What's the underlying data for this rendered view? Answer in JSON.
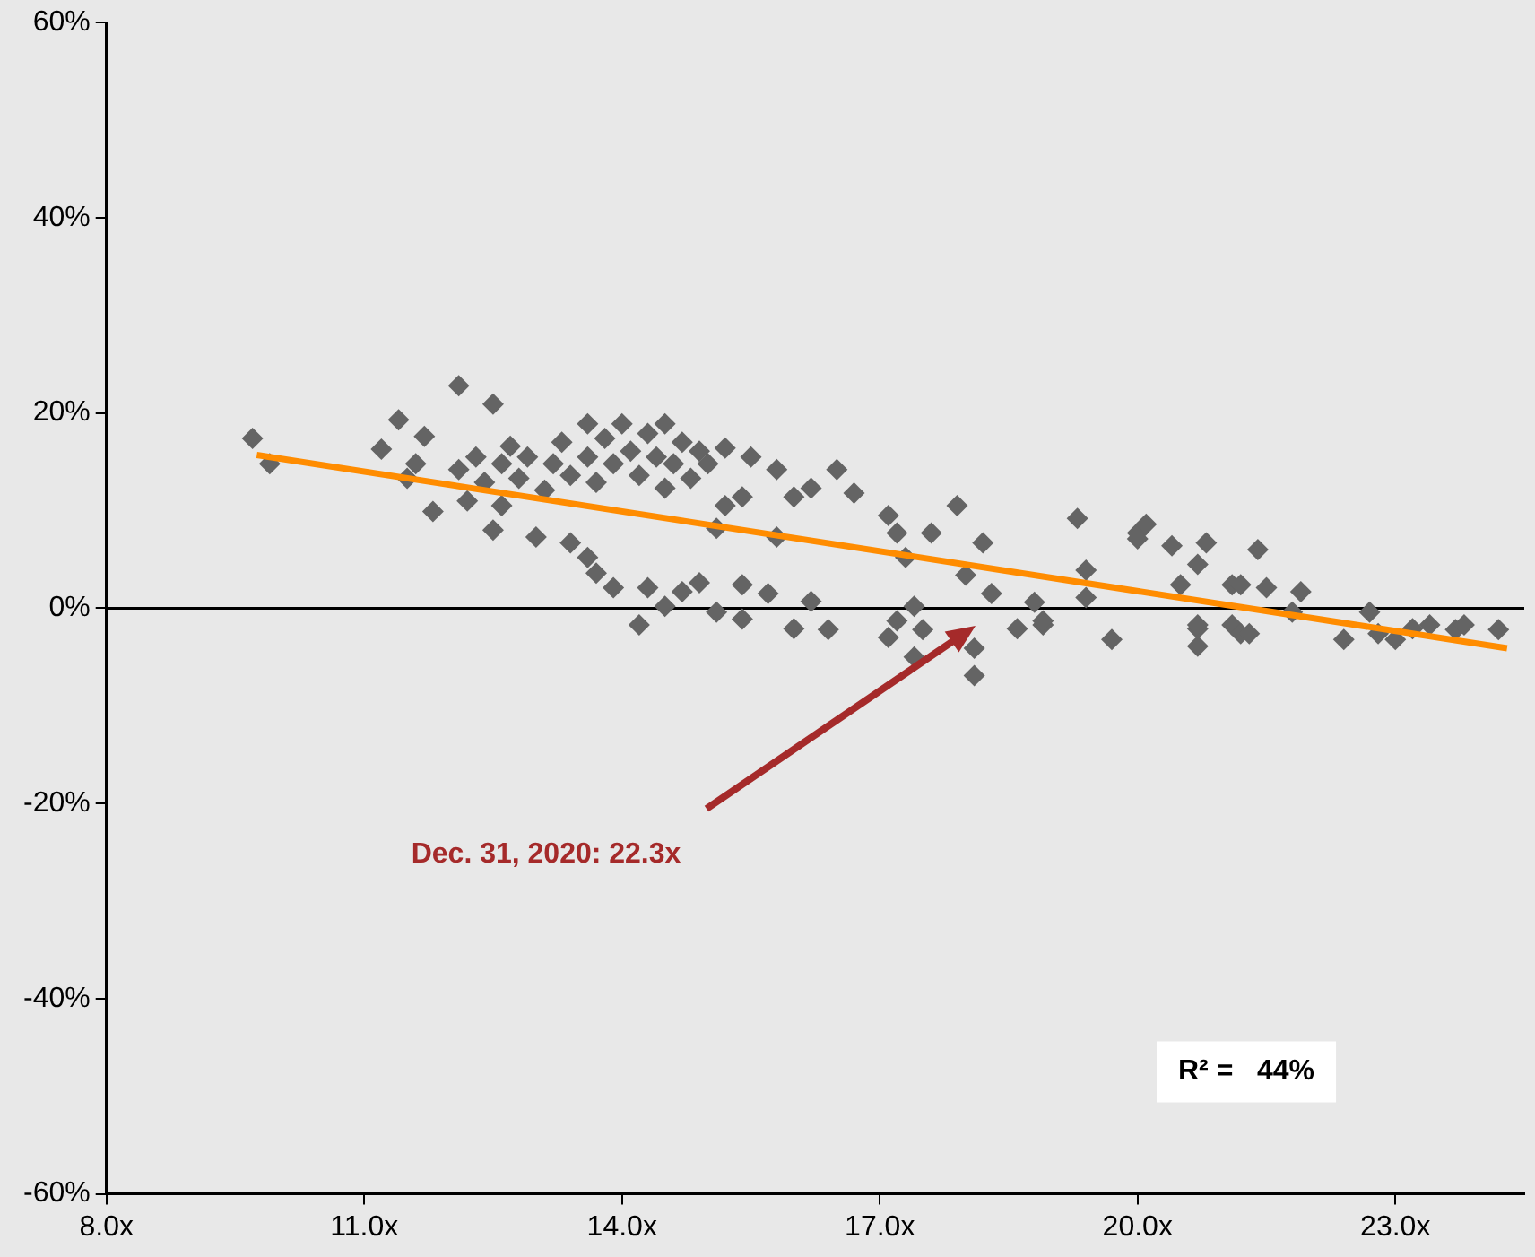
{
  "chart_data": {
    "type": "scatter",
    "xlim": [
      8,
      24.5
    ],
    "ylim": [
      -60,
      60
    ],
    "xticks": [
      {
        "value": 8,
        "label": "8.0x"
      },
      {
        "value": 11,
        "label": "11.0x"
      },
      {
        "value": 14,
        "label": "14.0x"
      },
      {
        "value": 17,
        "label": "17.0x"
      },
      {
        "value": 20,
        "label": "20.0x"
      },
      {
        "value": 23,
        "label": "23.0x"
      }
    ],
    "yticks": [
      {
        "value": -60,
        "label": "-60%"
      },
      {
        "value": -40,
        "label": "-40%"
      },
      {
        "value": -20,
        "label": "-20%"
      },
      {
        "value": 0,
        "label": "0%"
      },
      {
        "value": 20,
        "label": "20%"
      },
      {
        "value": 40,
        "label": "40%"
      },
      {
        "value": 60,
        "label": "60%"
      }
    ],
    "grid": false,
    "legend": false,
    "ref_lines": [
      {
        "axis": "y",
        "value": 0,
        "color": "#000000"
      }
    ],
    "annotations": [
      "Dec. 31, 2020: 22.3x",
      "R² =   44%"
    ],
    "series": [
      {
        "marker": "diamond",
        "color": "#646464",
        "x": [
          9.7,
          9.9,
          11.2,
          11.4,
          11.5,
          11.7,
          11.8,
          12.1,
          12.1,
          12.3,
          12.5,
          12.5,
          12.6,
          12.7,
          12.8,
          12.9,
          13.0,
          13.1,
          13.2,
          13.3,
          13.4,
          13.4,
          13.6,
          13.6,
          13.7,
          13.8,
          13.9,
          14.0,
          14.1,
          14.2,
          14.3,
          14.4,
          14.5,
          14.5,
          14.6,
          14.7,
          14.8,
          14.9,
          15.0,
          15.2,
          11.6,
          12.2,
          12.4,
          12.6,
          15.2,
          15.5,
          15.8,
          16.5,
          16.7,
          16.2,
          16.0,
          15.4,
          15.1,
          15.8,
          17.1,
          17.2,
          17.3,
          17.9,
          17.6,
          18.2,
          18.0,
          18.3,
          19.3,
          19.4,
          19.4,
          20.0,
          20.1,
          20.0,
          20.4,
          20.8,
          20.7,
          21.4,
          20.5,
          21.1,
          21.2,
          21.5,
          21.9,
          21.8,
          13.6,
          13.7,
          13.9,
          14.2,
          14.3,
          14.5,
          14.7,
          14.9,
          15.1,
          15.4,
          15.4,
          15.7,
          16.0,
          16.2,
          16.4,
          17.4,
          17.2,
          17.5,
          17.1,
          17.4,
          18.1,
          18.1,
          18.8,
          18.6,
          18.9,
          18.9,
          19.7,
          20.7,
          20.7,
          20.7,
          21.1,
          21.2,
          21.3,
          22.4,
          22.7,
          22.8,
          23.0,
          23.2,
          23.4,
          23.7,
          23.8,
          24.2
        ],
        "values": [
          17.4,
          14.8,
          16.3,
          19.3,
          13.3,
          17.6,
          9.9,
          22.8,
          14.2,
          15.5,
          20.9,
          8.0,
          14.8,
          16.6,
          13.3,
          15.5,
          7.3,
          12.1,
          14.8,
          17.0,
          6.7,
          13.6,
          18.9,
          15.5,
          12.9,
          17.4,
          14.8,
          18.9,
          16.1,
          13.6,
          17.9,
          15.5,
          12.3,
          18.9,
          14.8,
          17.0,
          13.3,
          16.1,
          14.8,
          10.5,
          14.8,
          11.0,
          12.9,
          10.5,
          16.4,
          15.5,
          14.2,
          14.2,
          11.8,
          12.3,
          11.4,
          11.4,
          8.2,
          7.3,
          9.5,
          7.7,
          5.2,
          10.5,
          7.7,
          6.7,
          3.4,
          1.5,
          9.2,
          3.9,
          1.1,
          7.7,
          8.6,
          7.1,
          6.4,
          6.7,
          4.5,
          6.0,
          2.4,
          2.4,
          2.4,
          2.1,
          1.7,
          -0.4,
          5.2,
          3.6,
          2.1,
          -1.7,
          2.1,
          0.2,
          1.7,
          2.6,
          -0.4,
          2.4,
          -1.1,
          1.5,
          -2.1,
          0.7,
          -2.2,
          0.2,
          -1.3,
          -2.2,
          -3.0,
          -5.0,
          -4.1,
          -6.9,
          0.6,
          -2.1,
          -1.7,
          -1.3,
          -3.2,
          -3.9,
          -2.1,
          -1.7,
          -1.7,
          -2.6,
          -2.6,
          -3.2,
          -0.4,
          -2.6,
          -3.2,
          -2.1,
          -1.7,
          -2.2,
          -1.7,
          -2.2
        ]
      },
      {
        "type": "line",
        "color": "#ff8c00",
        "x": [
          9.75,
          24.3
        ],
        "values": [
          15.7,
          -4.1
        ]
      }
    ]
  }
}
